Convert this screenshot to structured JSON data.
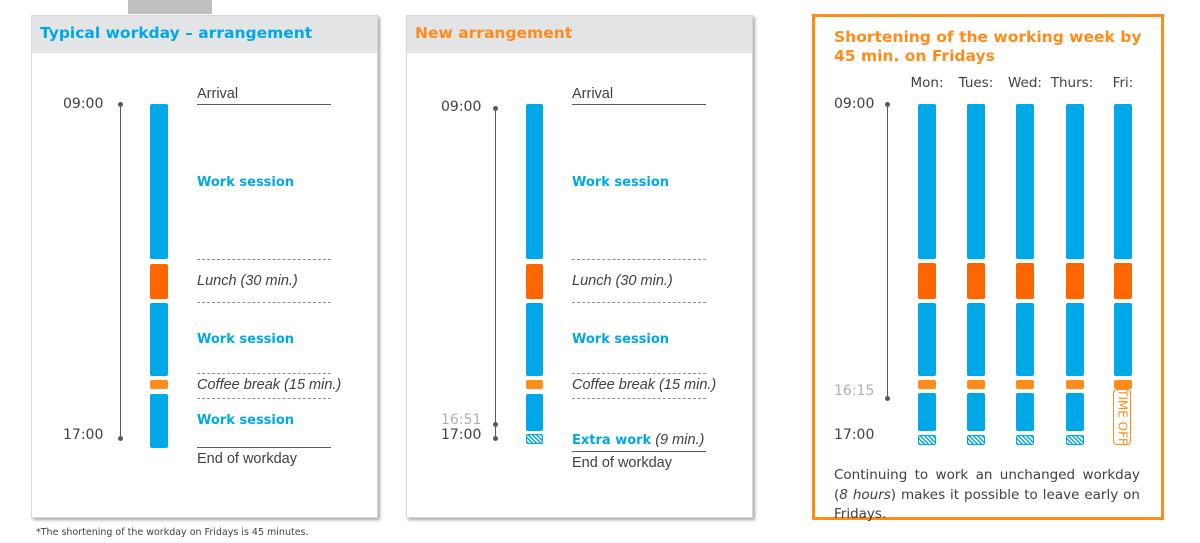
{
  "panel1": {
    "title": "Typical workday – arrangement",
    "time_start": "09:00",
    "time_end": "17:00",
    "labels": {
      "arrival": "Arrival",
      "work1": "Work session",
      "lunch": "Lunch (30 min.)",
      "work2": "Work session",
      "coffee": "Coffee break (15 min.)",
      "work3": "Work session",
      "end": "End of workday"
    }
  },
  "panel2": {
    "title": "New arrangement",
    "time_start": "09:00",
    "time_mid": "16:51",
    "time_end": "17:00",
    "labels": {
      "arrival": "Arrival",
      "work1": "Work session",
      "lunch": "Lunch (30 min.)",
      "work2": "Work session",
      "coffee": "Coffee break (15 min.)",
      "extra_bold": "Extra work",
      "extra_ital": "(9 min.)",
      "end": "End of workday"
    }
  },
  "panel3": {
    "title": "Shortening of the working week by 45 min. on Fridays",
    "days": [
      "Mon:",
      "Tues:",
      "Wed:",
      "Thurs:",
      "Fri:"
    ],
    "time_start": "09:00",
    "time_mid": "16:15",
    "time_end": "17:00",
    "time_off": "TIME OFF",
    "note_pre": "Continuing to work an unchanged workday (",
    "note_ital": "8 hours",
    "note_post": ") makes it possible to leave early on Fridays."
  },
  "footnote": "*The shortening of the workday on Fridays is 45 minutes.",
  "colors": {
    "work": "#00a8e8",
    "lunch": "#ff6600",
    "coffee": "#ff8c1a",
    "accent_orange": "#ff8c1a",
    "header_bg": "#e3e4e6"
  }
}
